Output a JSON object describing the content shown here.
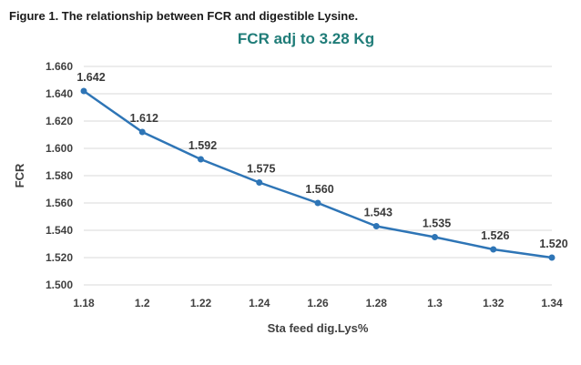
{
  "figure_caption": "Figure 1. The relationship between FCR and digestible Lysine.",
  "chart_data": {
    "type": "line",
    "title": "FCR adj to 3.28 Kg",
    "xlabel": "Sta feed dig.Lys%",
    "ylabel": "FCR",
    "categories": [
      "1.18",
      "1.2",
      "1.22",
      "1.24",
      "1.26",
      "1.28",
      "1.3",
      "1.32",
      "1.34"
    ],
    "values": [
      1.642,
      1.612,
      1.592,
      1.575,
      1.56,
      1.543,
      1.535,
      1.526,
      1.52
    ],
    "data_labels": [
      "1.642",
      "1.612",
      "1.592",
      "1.575",
      "1.560",
      "1.543",
      "1.535",
      "1.526",
      "1.520"
    ],
    "ylim": [
      1.5,
      1.66
    ],
    "ytick_labels": [
      "1.500",
      "1.520",
      "1.540",
      "1.560",
      "1.580",
      "1.600",
      "1.620",
      "1.640",
      "1.660"
    ],
    "grid": true,
    "legend_position": "none",
    "colors": {
      "line": "#2e75b6",
      "marker": "#2e75b6",
      "gridline": "#d9d9d9",
      "title": "#1f7c78",
      "tick_text": "#404040"
    }
  }
}
